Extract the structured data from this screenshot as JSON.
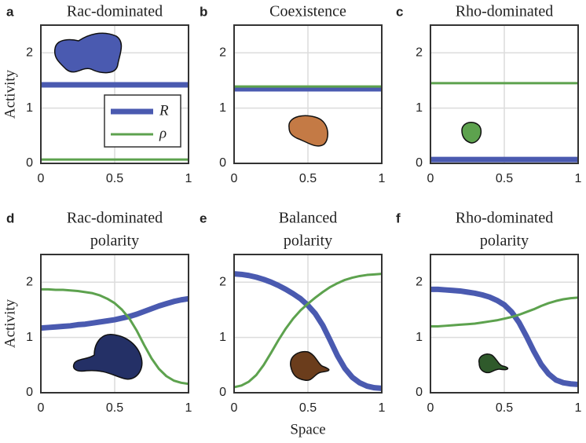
{
  "chart_data": [
    {
      "type": "line",
      "label": "a",
      "title": [
        "Rac-dominated"
      ],
      "ylabel": "Activity",
      "x": [
        0,
        1
      ],
      "xlim": [
        0,
        1
      ],
      "ylim": [
        0,
        2.5
      ],
      "xticks": [
        0,
        0.5,
        1
      ],
      "yticks": [
        0,
        1,
        2
      ],
      "grid": true,
      "legend": "right",
      "series": [
        {
          "name": "R",
          "color": "#4a5ab0",
          "values": [
            1.42,
            1.42
          ]
        },
        {
          "name": "ρ",
          "color": "#5da24e",
          "values": [
            0.07,
            0.07
          ]
        }
      ]
    },
    {
      "type": "line",
      "label": "b",
      "title": [
        "Coexistence"
      ],
      "x": [
        0,
        1
      ],
      "xlim": [
        0,
        1
      ],
      "ylim": [
        0,
        2.5
      ],
      "xticks": [
        0,
        0.5,
        1
      ],
      "yticks": [
        0,
        1,
        2
      ],
      "grid": true,
      "series": [
        {
          "color": "#4a5ab0",
          "values": [
            1.35,
            1.35
          ]
        },
        {
          "color": "#5da24e",
          "values": [
            1.39,
            1.39
          ]
        }
      ]
    },
    {
      "type": "line",
      "label": "c",
      "title": [
        "Rho-dominated"
      ],
      "x": [
        0,
        1
      ],
      "xlim": [
        0,
        1
      ],
      "ylim": [
        0,
        2.5
      ],
      "xticks": [
        0,
        0.5,
        1
      ],
      "yticks": [
        0,
        1,
        2
      ],
      "grid": true,
      "series": [
        {
          "color": "#4a5ab0",
          "values": [
            0.07,
            0.07
          ]
        },
        {
          "color": "#5da24e",
          "values": [
            1.45,
            1.45
          ]
        }
      ]
    },
    {
      "type": "line",
      "label": "d",
      "title": [
        "Rac-dominated",
        "polarity"
      ],
      "ylabel": "Activity",
      "x": [
        0,
        0.05,
        0.1,
        0.15,
        0.2,
        0.25,
        0.3,
        0.35,
        0.4,
        0.45,
        0.5,
        0.55,
        0.6,
        0.65,
        0.7,
        0.75,
        0.8,
        0.85,
        0.9,
        0.95,
        1
      ],
      "xlim": [
        0,
        1
      ],
      "ylim": [
        0,
        2.5
      ],
      "xticks": [
        0,
        0.5,
        1
      ],
      "yticks": [
        0,
        1,
        2
      ],
      "grid": true,
      "series": [
        {
          "color": "#4a5ab0",
          "values": [
            1.17,
            1.18,
            1.19,
            1.2,
            1.21,
            1.23,
            1.24,
            1.26,
            1.28,
            1.3,
            1.32,
            1.35,
            1.38,
            1.42,
            1.47,
            1.52,
            1.57,
            1.61,
            1.65,
            1.68,
            1.7
          ]
        },
        {
          "color": "#5da24e",
          "values": [
            1.87,
            1.87,
            1.86,
            1.86,
            1.85,
            1.84,
            1.82,
            1.8,
            1.76,
            1.7,
            1.62,
            1.5,
            1.34,
            1.12,
            0.86,
            0.62,
            0.43,
            0.3,
            0.22,
            0.18,
            0.16
          ]
        }
      ]
    },
    {
      "type": "line",
      "label": "e",
      "title": [
        "Balanced",
        "polarity"
      ],
      "xlabel": "Space",
      "x": [
        0,
        0.05,
        0.1,
        0.15,
        0.2,
        0.25,
        0.3,
        0.35,
        0.4,
        0.45,
        0.5,
        0.55,
        0.6,
        0.65,
        0.7,
        0.75,
        0.8,
        0.85,
        0.9,
        0.95,
        1
      ],
      "xlim": [
        0,
        1
      ],
      "ylim": [
        0,
        2.5
      ],
      "xticks": [
        0,
        0.5,
        1
      ],
      "yticks": [
        0,
        1,
        2
      ],
      "grid": true,
      "series": [
        {
          "color": "#4a5ab0",
          "values": [
            2.15,
            2.14,
            2.12,
            2.09,
            2.05,
            2.0,
            1.94,
            1.87,
            1.79,
            1.7,
            1.58,
            1.43,
            1.22,
            0.95,
            0.67,
            0.44,
            0.28,
            0.18,
            0.12,
            0.09,
            0.08
          ]
        },
        {
          "color": "#5da24e",
          "values": [
            0.1,
            0.13,
            0.2,
            0.32,
            0.5,
            0.72,
            0.95,
            1.16,
            1.34,
            1.49,
            1.61,
            1.72,
            1.82,
            1.91,
            1.98,
            2.04,
            2.08,
            2.11,
            2.13,
            2.14,
            2.15
          ]
        }
      ]
    },
    {
      "type": "line",
      "label": "f",
      "title": [
        "Rho-dominated",
        "polarity"
      ],
      "x": [
        0,
        0.05,
        0.1,
        0.15,
        0.2,
        0.25,
        0.3,
        0.35,
        0.4,
        0.45,
        0.5,
        0.55,
        0.6,
        0.65,
        0.7,
        0.75,
        0.8,
        0.85,
        0.9,
        0.95,
        1
      ],
      "xlim": [
        0,
        1
      ],
      "ylim": [
        0,
        2.5
      ],
      "xticks": [
        0,
        0.5,
        1
      ],
      "yticks": [
        0,
        1,
        2
      ],
      "grid": true,
      "series": [
        {
          "color": "#4a5ab0",
          "values": [
            1.87,
            1.87,
            1.86,
            1.85,
            1.84,
            1.82,
            1.8,
            1.77,
            1.73,
            1.67,
            1.59,
            1.46,
            1.27,
            1.02,
            0.75,
            0.51,
            0.34,
            0.23,
            0.18,
            0.16,
            0.15
          ]
        },
        {
          "color": "#5da24e",
          "values": [
            1.2,
            1.2,
            1.21,
            1.22,
            1.23,
            1.24,
            1.25,
            1.27,
            1.29,
            1.31,
            1.34,
            1.37,
            1.41,
            1.46,
            1.51,
            1.57,
            1.62,
            1.66,
            1.69,
            1.71,
            1.72
          ]
        }
      ]
    }
  ]
}
